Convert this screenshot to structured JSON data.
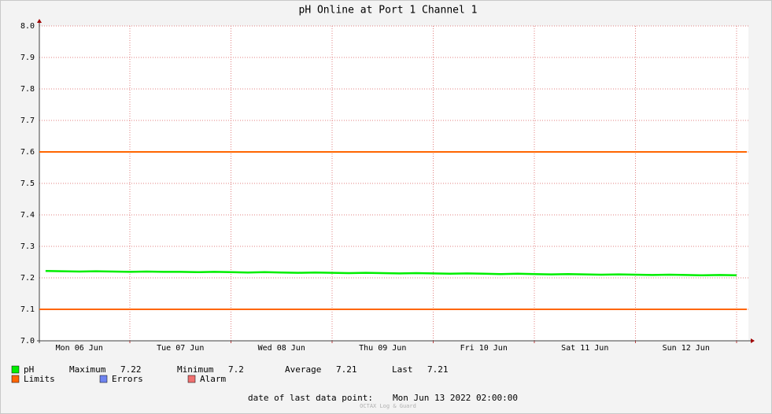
{
  "chart_data": {
    "type": "line",
    "title": "pH Online at Port 1 Channel 1",
    "categories": [
      null,
      null,
      "Mon 06 Jun",
      null,
      null,
      null,
      null,
      null,
      "Tue 07 Jun",
      null,
      null,
      null,
      null,
      null,
      "Wed 08 Jun",
      null,
      null,
      null,
      null,
      null,
      "Thu 09 Jun",
      null,
      null,
      null,
      null,
      null,
      "Fri 10 Jun",
      null,
      null,
      null,
      null,
      null,
      "Sat 11 Jun",
      null,
      null,
      null,
      null,
      null,
      "Sun 12 Jun",
      null,
      null,
      null
    ],
    "series": [
      {
        "name": "pH",
        "color": "#00ee00",
        "values": [
          7.222,
          7.221,
          7.22,
          7.221,
          7.22,
          7.219,
          7.22,
          7.219,
          7.219,
          7.218,
          7.219,
          7.218,
          7.217,
          7.218,
          7.217,
          7.216,
          7.217,
          7.216,
          7.215,
          7.216,
          7.215,
          7.214,
          7.215,
          7.214,
          7.213,
          7.214,
          7.213,
          7.212,
          7.213,
          7.212,
          7.211,
          7.212,
          7.211,
          7.21,
          7.211,
          7.21,
          7.209,
          7.21,
          7.209,
          7.208,
          7.209,
          7.208
        ]
      }
    ],
    "limits": {
      "name": "Limits",
      "color": "#ff6600",
      "values": [
        7.6,
        7.1
      ]
    },
    "legend_only": [
      {
        "name": "Errors",
        "color": "#6f84f0"
      },
      {
        "name": "Alarm",
        "color": "#f07070"
      }
    ],
    "stats": [
      {
        "label": "Maximum",
        "value": 7.22
      },
      {
        "label": "Minimum",
        "value": 7.2
      },
      {
        "label": "Average",
        "value": 7.21
      },
      {
        "label": "Last",
        "value": 7.21
      }
    ],
    "ylim": [
      7,
      8
    ],
    "yticks": [
      {
        "value": 7,
        "label": "7.0"
      },
      7.1,
      7.2,
      7.3,
      7.4,
      7.5,
      7.6,
      7.7,
      7.8,
      7.9,
      {
        "value": 8,
        "label": "8.0"
      }
    ],
    "grid": true,
    "footer_label": "date of last data point:",
    "footer_value": "Mon Jun 13 2022 02:00:00",
    "watermark": "OCTAX Log & Guard"
  }
}
